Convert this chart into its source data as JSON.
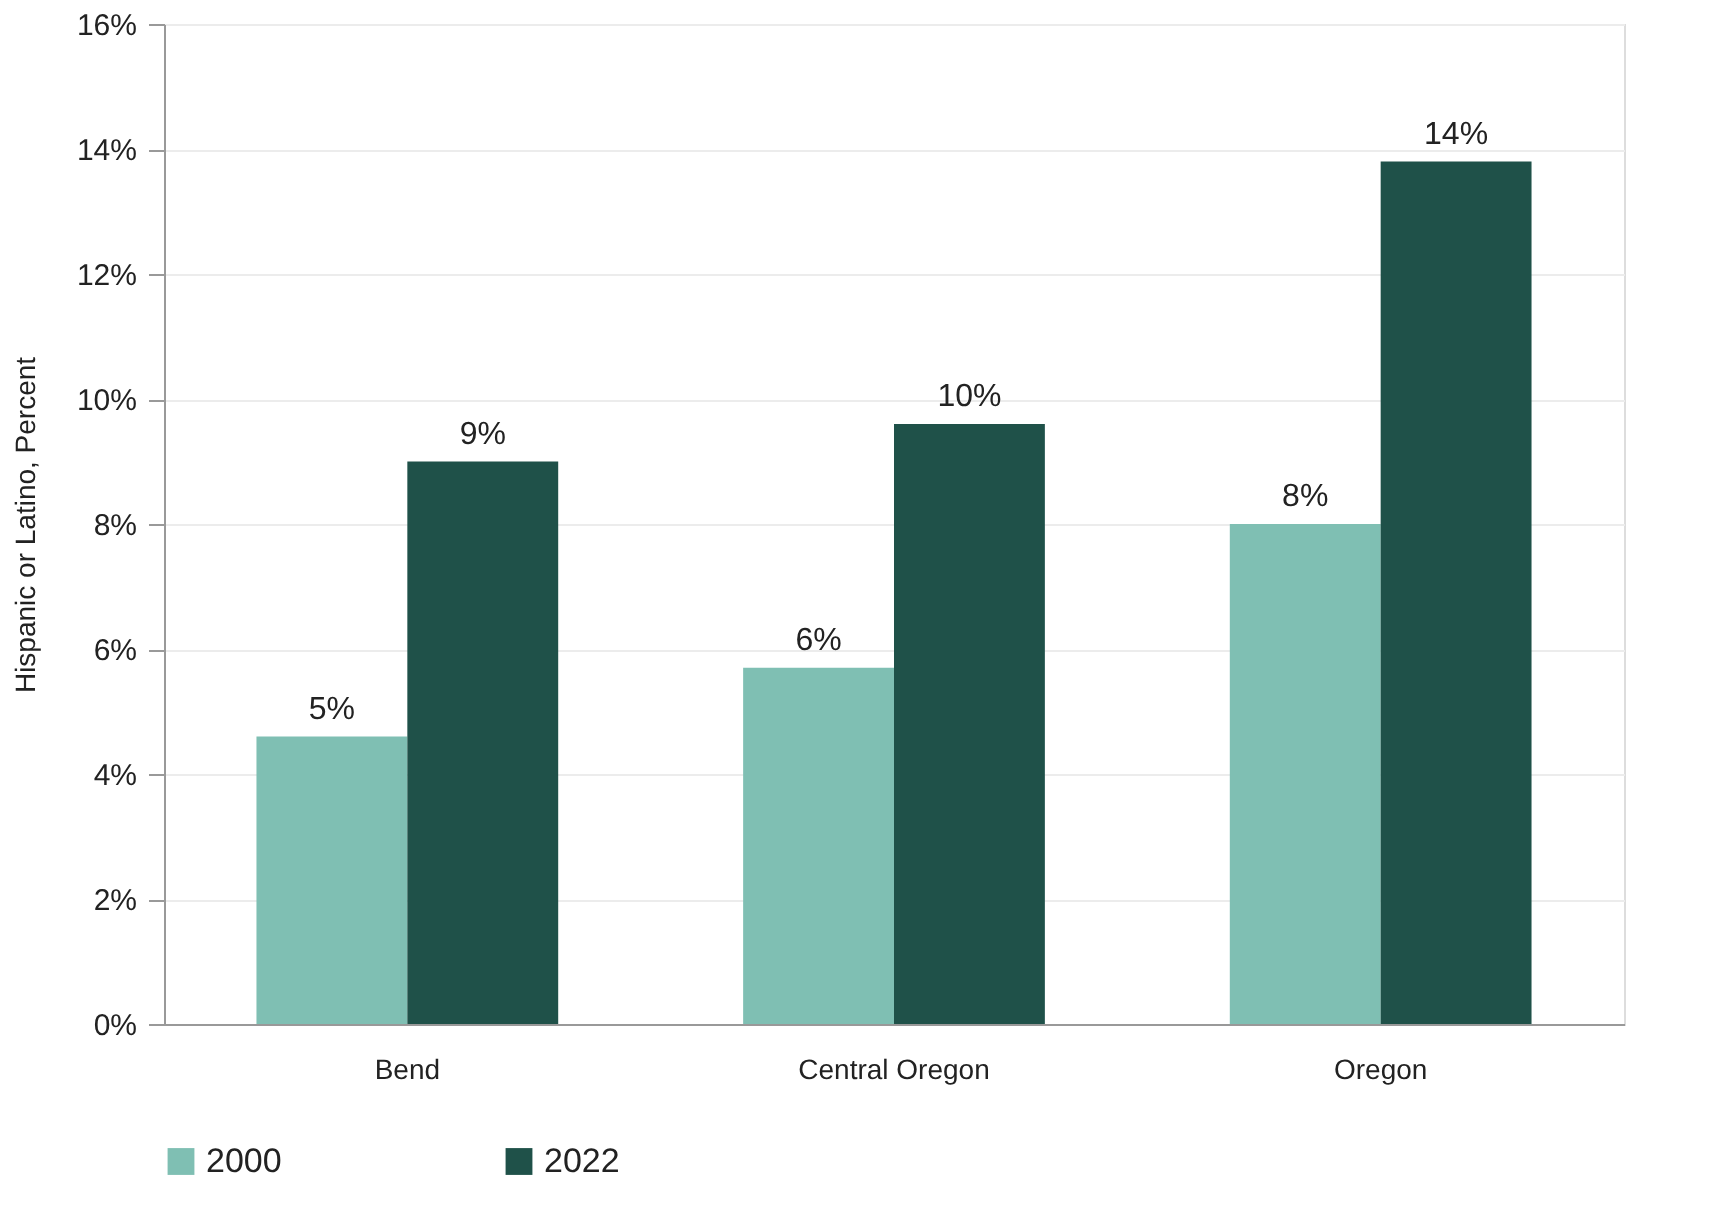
{
  "chart_data": {
    "type": "bar",
    "ylabel": "Hispanic or Latino, Percent",
    "categories": [
      "Bend",
      "Central Oregon",
      "Oregon"
    ],
    "series": [
      {
        "name": "2000",
        "color": "#7fbfb3",
        "values": [
          4.6,
          5.7,
          8.0
        ],
        "value_labels": [
          "5%",
          "6%",
          "8%"
        ]
      },
      {
        "name": "2022",
        "color": "#1f5149",
        "values": [
          9.0,
          9.6,
          13.8
        ],
        "value_labels": [
          "9%",
          "10%",
          "14%"
        ]
      }
    ],
    "ylim": [
      0,
      16
    ],
    "yticks": [
      {
        "value": 0,
        "label": "0%"
      },
      {
        "value": 2,
        "label": "2%"
      },
      {
        "value": 4,
        "label": "4%"
      },
      {
        "value": 6,
        "label": "6%"
      },
      {
        "value": 8,
        "label": "8%"
      },
      {
        "value": 10,
        "label": "10%"
      },
      {
        "value": 12,
        "label": "12%"
      },
      {
        "value": 14,
        "label": "14%"
      },
      {
        "value": 16,
        "label": "16%"
      }
    ],
    "grid": "y",
    "legend": "bottom"
  }
}
